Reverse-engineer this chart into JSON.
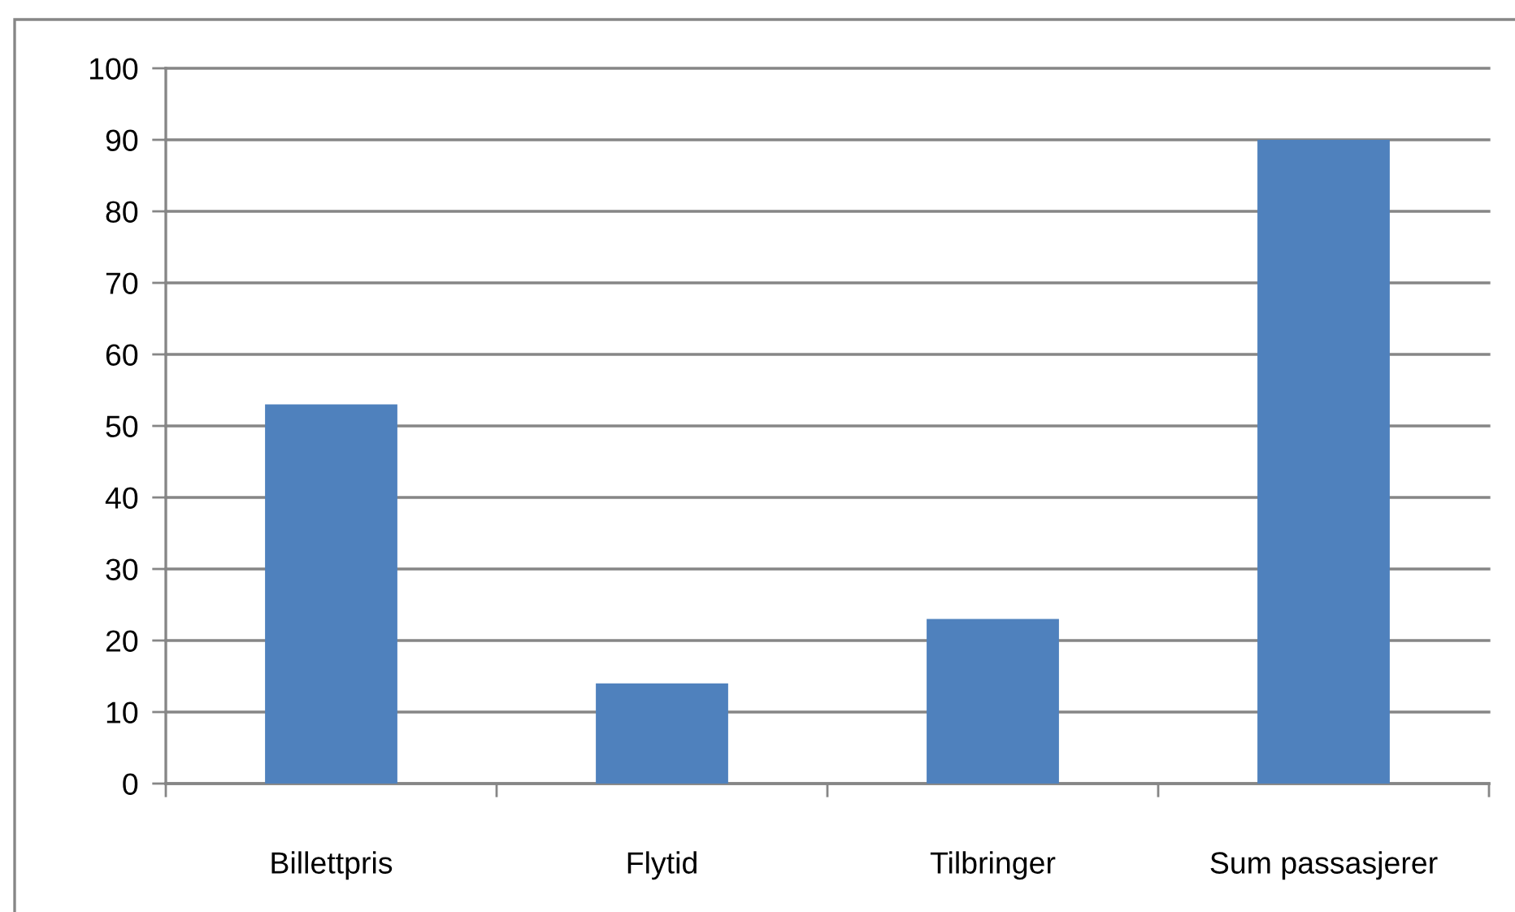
{
  "chart_data": {
    "type": "bar",
    "categories": [
      "Billettpris",
      "Flytid",
      "Tilbringer",
      "Sum passasjerer"
    ],
    "values": [
      53,
      14,
      23,
      90
    ],
    "color": "#4f81bd",
    "ylim": [
      0,
      100
    ],
    "yticks": [
      0,
      10,
      20,
      30,
      40,
      50,
      60,
      70,
      80,
      90,
      100
    ],
    "grid": "y"
  }
}
